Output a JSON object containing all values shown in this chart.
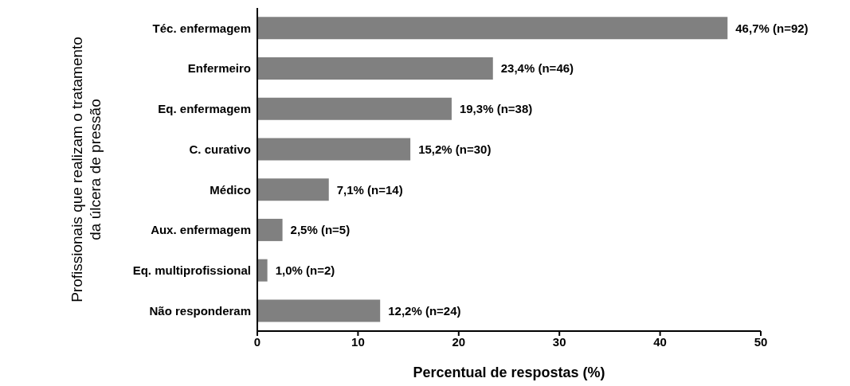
{
  "chart_data": {
    "type": "bar",
    "orientation": "horizontal",
    "ylabel": "Profissionais que realizam o tratamento\nda úlcera de pressão",
    "xlabel": "Percentual de respostas (%)",
    "categories": [
      "Téc. enfermagem",
      "Enfermeiro",
      "Eq. enfermagem",
      "C. curativo",
      "Médico",
      "Aux. enfermagem",
      "Eq. multiprofissional",
      "Não responderam"
    ],
    "values": [
      46.7,
      23.4,
      19.3,
      15.2,
      7.1,
      2.5,
      1.0,
      12.2
    ],
    "value_labels": [
      "46,7% (n=92)",
      "23,4% (n=46)",
      "19,3% (n=38)",
      "15,2% (n=30)",
      "7,1% (n=14)",
      "2,5% (n=5)",
      "1,0% (n=2)",
      "12,2% (n=24)"
    ],
    "color": "#808080",
    "xlim": [
      0,
      50
    ],
    "xticks": [
      0,
      10,
      20,
      30,
      40,
      50
    ],
    "grid": false
  }
}
